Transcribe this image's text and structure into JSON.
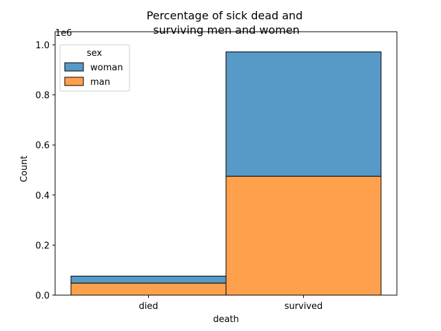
{
  "chart_data": {
    "type": "bar",
    "stacked": true,
    "title_line1": "Percentage of sick dead and",
    "title_line2": " surviving men and women",
    "xlabel": "death",
    "ylabel": "Count",
    "y_offset_label": "1e6",
    "categories": [
      "died",
      "survived"
    ],
    "ylim": [
      0,
      1.0
    ],
    "yticks": [
      "0.0",
      "0.2",
      "0.4",
      "0.6",
      "0.8",
      "1.0"
    ],
    "series": [
      {
        "name": "man",
        "color": "#ffa04d",
        "values": [
          0.048,
          0.475
        ]
      },
      {
        "name": "woman",
        "color": "#5799c7",
        "values": [
          0.028,
          0.497
        ]
      }
    ],
    "legend": {
      "title": "sex",
      "placement": "top-left",
      "entries": [
        {
          "label": "woman",
          "color": "#5799c7"
        },
        {
          "label": "man",
          "color": "#ffa04d"
        }
      ]
    },
    "grid": false
  }
}
